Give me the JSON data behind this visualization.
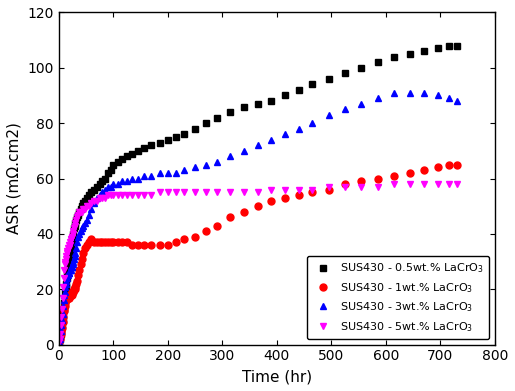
{
  "title": "",
  "xlabel": "Time (hr)",
  "ylabel": "ASR (mΩ.cm2)",
  "xlim": [
    0,
    800
  ],
  "ylim": [
    0,
    120
  ],
  "xticks": [
    0,
    100,
    200,
    300,
    400,
    500,
    600,
    700,
    800
  ],
  "yticks": [
    0,
    20,
    40,
    60,
    80,
    100,
    120
  ],
  "series": [
    {
      "label": "SUS430 - 0.5wt.% LaCrO$_3$",
      "color": "black",
      "marker": "s",
      "markersize": 5,
      "x": [
        1,
        2,
        3,
        4,
        5,
        6,
        7,
        8,
        9,
        10,
        11,
        12,
        13,
        14,
        15,
        16,
        17,
        18,
        19,
        20,
        21,
        22,
        23,
        24,
        25,
        26,
        27,
        28,
        29,
        30,
        32,
        34,
        36,
        38,
        40,
        42,
        45,
        48,
        51,
        55,
        60,
        65,
        70,
        75,
        80,
        85,
        90,
        95,
        100,
        108,
        116,
        125,
        135,
        145,
        157,
        170,
        185,
        200,
        215,
        230,
        250,
        270,
        290,
        315,
        340,
        365,
        390,
        415,
        440,
        465,
        495,
        525,
        555,
        585,
        615,
        645,
        670,
        695,
        715,
        730
      ],
      "y": [
        1,
        2,
        3,
        4,
        5,
        7,
        9,
        11,
        13,
        15,
        17,
        19,
        21,
        22,
        24,
        26,
        28,
        29,
        30,
        32,
        33,
        35,
        36,
        37,
        38,
        39,
        40,
        42,
        43,
        44,
        45,
        46,
        47,
        48,
        49,
        50,
        51,
        52,
        53,
        54,
        55,
        56,
        57,
        58,
        59,
        60,
        62,
        63,
        65,
        66,
        67,
        68,
        69,
        70,
        71,
        72,
        73,
        74,
        75,
        76,
        78,
        80,
        82,
        84,
        86,
        87,
        88,
        90,
        92,
        94,
        96,
        98,
        100,
        102,
        104,
        105,
        106,
        107,
        108,
        108
      ]
    },
    {
      "label": "SUS430 - 1wt.% LaCrO$_3$",
      "color": "red",
      "marker": "o",
      "markersize": 5,
      "x": [
        1,
        2,
        3,
        4,
        5,
        6,
        7,
        8,
        9,
        10,
        11,
        12,
        13,
        14,
        15,
        16,
        17,
        18,
        19,
        20,
        21,
        22,
        23,
        24,
        25,
        26,
        27,
        28,
        29,
        30,
        32,
        34,
        36,
        38,
        40,
        42,
        45,
        48,
        51,
        55,
        60,
        65,
        70,
        75,
        80,
        85,
        90,
        95,
        100,
        108,
        116,
        125,
        135,
        145,
        157,
        170,
        185,
        200,
        215,
        230,
        250,
        270,
        290,
        315,
        340,
        365,
        390,
        415,
        440,
        465,
        495,
        525,
        555,
        585,
        615,
        645,
        670,
        695,
        715,
        730
      ],
      "y": [
        1,
        2,
        3,
        4,
        5,
        6,
        8,
        10,
        12,
        13,
        14,
        15,
        16,
        16,
        17,
        17,
        17,
        17,
        17,
        18,
        18,
        18,
        18,
        18,
        19,
        19,
        19,
        20,
        20,
        21,
        22,
        23,
        25,
        27,
        29,
        31,
        33,
        35,
        36,
        37,
        38,
        37,
        37,
        37,
        37,
        37,
        37,
        37,
        37,
        37,
        37,
        37,
        36,
        36,
        36,
        36,
        36,
        36,
        37,
        38,
        39,
        41,
        43,
        46,
        48,
        50,
        52,
        53,
        54,
        55,
        56,
        58,
        59,
        60,
        61,
        62,
        63,
        64,
        65,
        65
      ]
    },
    {
      "label": "SUS430 - 3wt.% LaCrO$_3$",
      "color": "blue",
      "marker": "^",
      "markersize": 5,
      "x": [
        1,
        2,
        3,
        4,
        5,
        6,
        7,
        8,
        9,
        10,
        11,
        12,
        13,
        14,
        15,
        16,
        17,
        18,
        19,
        20,
        21,
        22,
        23,
        24,
        25,
        26,
        27,
        28,
        29,
        30,
        32,
        34,
        36,
        38,
        40,
        42,
        45,
        48,
        51,
        55,
        60,
        65,
        70,
        75,
        80,
        85,
        90,
        95,
        100,
        108,
        116,
        125,
        135,
        145,
        157,
        170,
        185,
        200,
        215,
        230,
        250,
        270,
        290,
        315,
        340,
        365,
        390,
        415,
        440,
        465,
        495,
        525,
        555,
        585,
        615,
        645,
        670,
        695,
        715,
        730
      ],
      "y": [
        1,
        2,
        3,
        5,
        7,
        9,
        11,
        14,
        16,
        18,
        19,
        21,
        22,
        23,
        24,
        25,
        25,
        26,
        26,
        27,
        27,
        27,
        28,
        28,
        28,
        29,
        30,
        31,
        32,
        33,
        35,
        37,
        39,
        40,
        41,
        42,
        43,
        44,
        45,
        47,
        49,
        51,
        53,
        54,
        55,
        56,
        57,
        57,
        58,
        58,
        59,
        59,
        60,
        60,
        61,
        61,
        62,
        62,
        62,
        63,
        64,
        65,
        66,
        68,
        70,
        72,
        74,
        76,
        78,
        80,
        83,
        85,
        87,
        89,
        91,
        91,
        91,
        90,
        89,
        88
      ]
    },
    {
      "label": "SUS430 - 5wt.% LaCrO$_3$",
      "color": "magenta",
      "marker": "v",
      "markersize": 5,
      "x": [
        1,
        2,
        3,
        4,
        5,
        6,
        7,
        8,
        9,
        10,
        11,
        12,
        13,
        14,
        15,
        16,
        17,
        18,
        19,
        20,
        21,
        22,
        23,
        24,
        25,
        26,
        27,
        28,
        29,
        30,
        32,
        34,
        36,
        38,
        40,
        42,
        45,
        48,
        51,
        55,
        60,
        65,
        70,
        75,
        80,
        85,
        90,
        95,
        100,
        108,
        116,
        125,
        135,
        145,
        157,
        170,
        185,
        200,
        215,
        230,
        250,
        270,
        290,
        315,
        340,
        365,
        390,
        415,
        440,
        465,
        495,
        525,
        555,
        585,
        615,
        645,
        670,
        695,
        715,
        730
      ],
      "y": [
        1,
        2,
        4,
        7,
        10,
        13,
        17,
        21,
        24,
        27,
        29,
        30,
        31,
        32,
        33,
        34,
        35,
        35,
        36,
        36,
        37,
        38,
        38,
        39,
        39,
        40,
        41,
        42,
        43,
        44,
        45,
        46,
        47,
        48,
        48,
        48,
        49,
        49,
        50,
        50,
        51,
        52,
        52,
        53,
        53,
        53,
        54,
        54,
        54,
        54,
        54,
        54,
        54,
        54,
        54,
        54,
        55,
        55,
        55,
        55,
        55,
        55,
        55,
        55,
        55,
        55,
        56,
        56,
        56,
        56,
        57,
        57,
        57,
        57,
        58,
        58,
        58,
        58,
        58,
        58
      ]
    }
  ],
  "legend_loc": "lower right",
  "bg_color": "white",
  "spine_color": "black"
}
